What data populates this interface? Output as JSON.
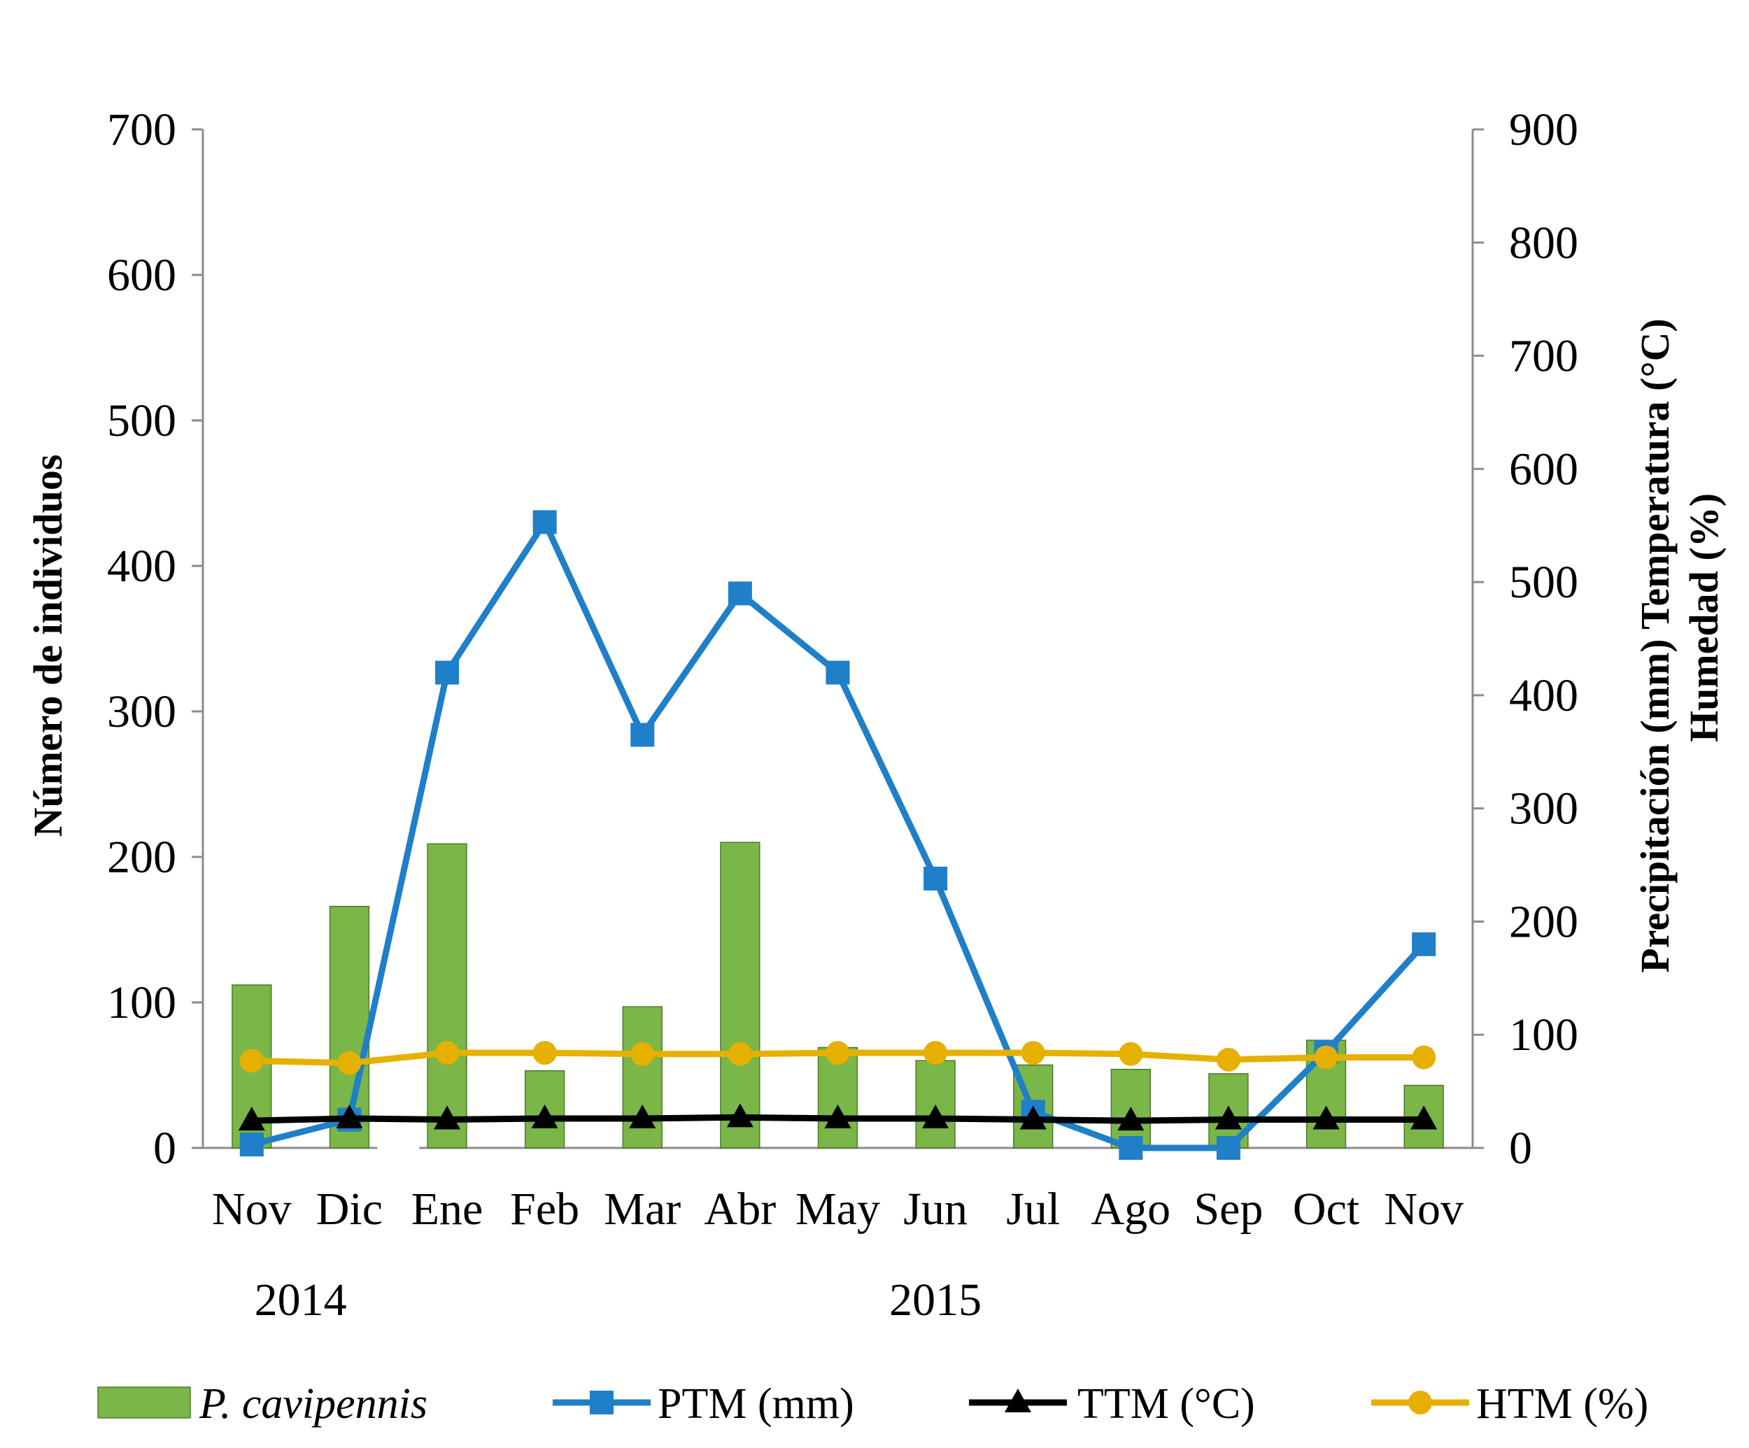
{
  "chart_data": {
    "type": "bar+line",
    "categories": [
      "Nov",
      "Dic",
      "Ene",
      "Feb",
      "Mar",
      "Abr",
      "May",
      "Jun",
      "Jul",
      "Ago",
      "Sep",
      "Oct",
      "Nov"
    ],
    "year_labels": [
      {
        "label": "2014",
        "span": [
          0,
          1
        ]
      },
      {
        "label": "2015",
        "span": [
          2,
          12
        ]
      }
    ],
    "left_axis": {
      "title": "Número de individuos",
      "ylim": [
        0,
        700
      ],
      "ticks": [
        0,
        100,
        200,
        300,
        400,
        500,
        600,
        700
      ]
    },
    "right_axis": {
      "title_line1": "Precipitación (mm) Temperatura (°C)",
      "title_line2": "Humedad (%)",
      "ylim": [
        0,
        900
      ],
      "ticks": [
        0,
        100,
        200,
        300,
        400,
        500,
        600,
        700,
        800,
        900
      ]
    },
    "series": [
      {
        "name": "P. cavipennis",
        "kind": "bar",
        "axis": "left",
        "color": "#7ab648",
        "values": [
          112,
          166,
          209,
          53,
          97,
          210,
          69,
          60,
          57,
          54,
          51,
          74,
          43
        ]
      },
      {
        "name": "PTM (mm)",
        "kind": "line",
        "axis": "right",
        "marker": "square",
        "color": "#1f7fc8",
        "values": [
          3,
          25,
          420,
          553,
          365,
          490,
          420,
          238,
          32,
          0,
          0,
          85,
          180
        ]
      },
      {
        "name": "TTM (°C)",
        "kind": "line",
        "axis": "right",
        "marker": "triangle",
        "color": "#000000",
        "values": [
          24,
          26,
          25,
          26,
          26,
          27,
          26,
          26,
          25,
          24,
          25,
          25,
          25
        ]
      },
      {
        "name": "HTM (%)",
        "kind": "line",
        "axis": "right",
        "marker": "circle",
        "color": "#e6b000",
        "values": [
          77,
          75,
          84,
          84,
          83,
          83,
          84,
          84,
          84,
          83,
          78,
          80,
          80
        ]
      }
    ],
    "legend": {
      "placement": "bottom",
      "items": [
        {
          "label": "P. cavipennis",
          "italic": true
        },
        {
          "label": "PTM (mm)",
          "italic": false
        },
        {
          "label": "TTM (°C)",
          "italic": false
        },
        {
          "label": "HTM (%)",
          "italic": false
        }
      ]
    },
    "grid": false
  }
}
